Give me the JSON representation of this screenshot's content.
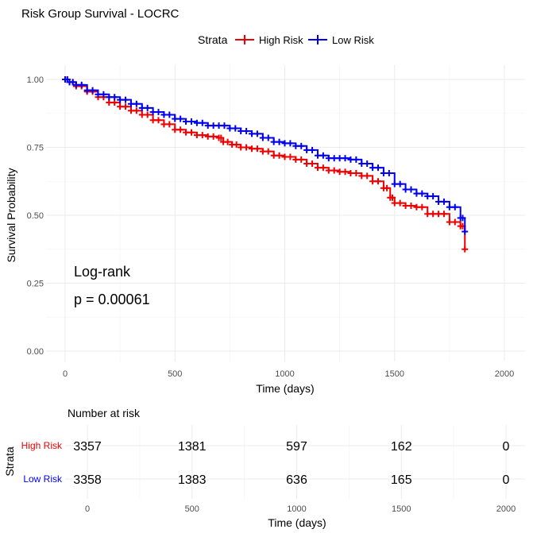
{
  "chart_data": [
    {
      "type": "line",
      "subtype": "kaplan-meier",
      "title": "Risk Group Survival - LOCRC",
      "xlabel": "Time (days)",
      "ylabel": "Survival Probability",
      "xlim": [
        0,
        2000
      ],
      "ylim": [
        0,
        1
      ],
      "xticks": [
        "0",
        "500",
        "1000",
        "1500",
        "2000"
      ],
      "yticks": [
        "0.00",
        "0.25",
        "0.50",
        "0.75",
        "1.00"
      ],
      "legend": {
        "title": "Strata",
        "position": "top"
      },
      "grid": true,
      "annotation": {
        "line1": "Log-rank",
        "line2": "p = 0.00061"
      },
      "series": [
        {
          "name": "High Risk",
          "color": "#ee0000",
          "x": [
            0,
            20,
            50,
            100,
            150,
            200,
            250,
            300,
            350,
            400,
            450,
            500,
            550,
            600,
            650,
            700,
            720,
            760,
            800,
            850,
            900,
            950,
            1000,
            1050,
            1100,
            1150,
            1200,
            1250,
            1300,
            1350,
            1400,
            1450,
            1480,
            1500,
            1550,
            1600,
            1650,
            1700,
            1750,
            1800,
            1820
          ],
          "y": [
            1.0,
            0.99,
            0.975,
            0.955,
            0.935,
            0.915,
            0.9,
            0.885,
            0.87,
            0.85,
            0.835,
            0.815,
            0.805,
            0.795,
            0.79,
            0.785,
            0.77,
            0.76,
            0.75,
            0.745,
            0.735,
            0.72,
            0.715,
            0.705,
            0.69,
            0.675,
            0.665,
            0.66,
            0.655,
            0.645,
            0.625,
            0.6,
            0.565,
            0.545,
            0.535,
            0.53,
            0.505,
            0.505,
            0.475,
            0.46,
            0.375
          ]
        },
        {
          "name": "Low Risk",
          "color": "#0000ee",
          "x": [
            0,
            20,
            50,
            100,
            150,
            200,
            250,
            300,
            350,
            400,
            450,
            500,
            550,
            600,
            650,
            700,
            750,
            800,
            850,
            900,
            950,
            1000,
            1050,
            1100,
            1150,
            1200,
            1250,
            1300,
            1350,
            1400,
            1450,
            1500,
            1550,
            1600,
            1650,
            1700,
            1750,
            1800,
            1820
          ],
          "y": [
            1.0,
            0.99,
            0.98,
            0.96,
            0.945,
            0.935,
            0.925,
            0.91,
            0.895,
            0.88,
            0.87,
            0.855,
            0.845,
            0.84,
            0.83,
            0.83,
            0.82,
            0.81,
            0.8,
            0.785,
            0.77,
            0.765,
            0.755,
            0.74,
            0.72,
            0.71,
            0.71,
            0.705,
            0.69,
            0.675,
            0.655,
            0.615,
            0.595,
            0.58,
            0.57,
            0.55,
            0.53,
            0.49,
            0.44
          ]
        }
      ]
    },
    {
      "type": "table",
      "title": "Number at risk",
      "xlabel": "Time (days)",
      "ylabel": "Strata",
      "xticks": [
        "0",
        "500",
        "1000",
        "1500",
        "2000"
      ],
      "rows": [
        {
          "name": "High Risk",
          "color": "#ee0000",
          "values": [
            "3357",
            "1381",
            "597",
            "162",
            "0"
          ]
        },
        {
          "name": "Low Risk",
          "color": "#0000ee",
          "values": [
            "3358",
            "1383",
            "636",
            "165",
            "0"
          ]
        }
      ]
    }
  ]
}
